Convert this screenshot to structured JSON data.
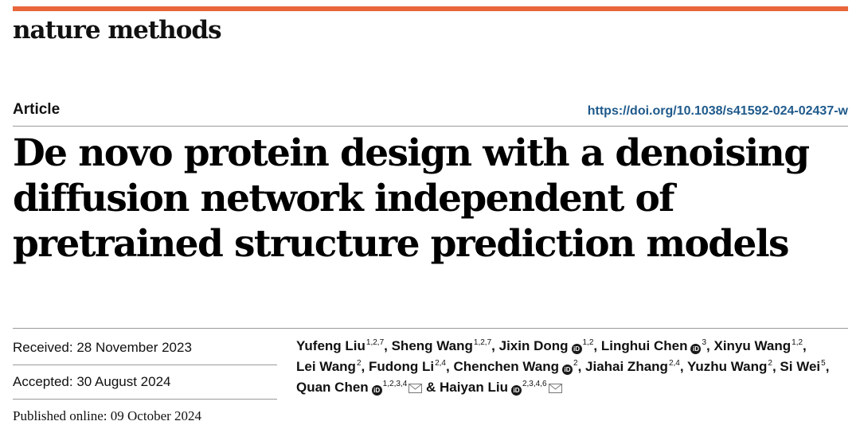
{
  "header": {
    "journal_name": "nature methods",
    "accent_color": "#e8663a"
  },
  "article": {
    "type": "Article",
    "doi": "https://doi.org/10.1038/s41592-024-02437-w",
    "title": "De novo protein design with a denoising diffusion network independent of pretrained structure prediction models"
  },
  "dates": {
    "received": "Received: 28 November 2023",
    "accepted": "Accepted: 30 August 2024",
    "published": "Published online: 09 October 2024"
  },
  "authors": [
    {
      "name": "Yufeng Liu",
      "affil": "1,2,7",
      "orcid": false,
      "mail": false,
      "sep": ", "
    },
    {
      "name": "Sheng Wang",
      "affil": "1,2,7",
      "orcid": false,
      "mail": false,
      "sep": ", "
    },
    {
      "name": "Jixin Dong",
      "affil": "1,2",
      "orcid": true,
      "mail": false,
      "sep": ", "
    },
    {
      "name": "Linghui Chen",
      "affil": "3",
      "orcid": true,
      "mail": false,
      "sep": ", "
    },
    {
      "name": "Xinyu Wang",
      "affil": "1,2",
      "orcid": false,
      "mail": false,
      "sep": ", "
    },
    {
      "name": "Lei Wang",
      "affil": "2",
      "orcid": false,
      "mail": false,
      "sep": ", "
    },
    {
      "name": "Fudong Li",
      "affil": "2,4",
      "orcid": false,
      "mail": false,
      "sep": ", "
    },
    {
      "name": "Chenchen Wang",
      "affil": "2",
      "orcid": true,
      "mail": false,
      "sep": ", "
    },
    {
      "name": "Jiahai Zhang",
      "affil": "2,4",
      "orcid": false,
      "mail": false,
      "sep": ", "
    },
    {
      "name": "Yuzhu Wang",
      "affil": "2",
      "orcid": false,
      "mail": false,
      "sep": ", "
    },
    {
      "name": "Si Wei",
      "affil": "5",
      "orcid": false,
      "mail": false,
      "sep": ", "
    },
    {
      "name": "Quan Chen",
      "affil": "1,2,3,4",
      "orcid": true,
      "mail": true,
      "sep": " & "
    },
    {
      "name": "Haiyan Liu",
      "affil": "2,3,4,6",
      "orcid": true,
      "mail": true,
      "sep": ""
    }
  ],
  "orcid_label": "iD",
  "icons": {
    "orcid": "orcid-icon",
    "mail": "envelope-icon"
  }
}
